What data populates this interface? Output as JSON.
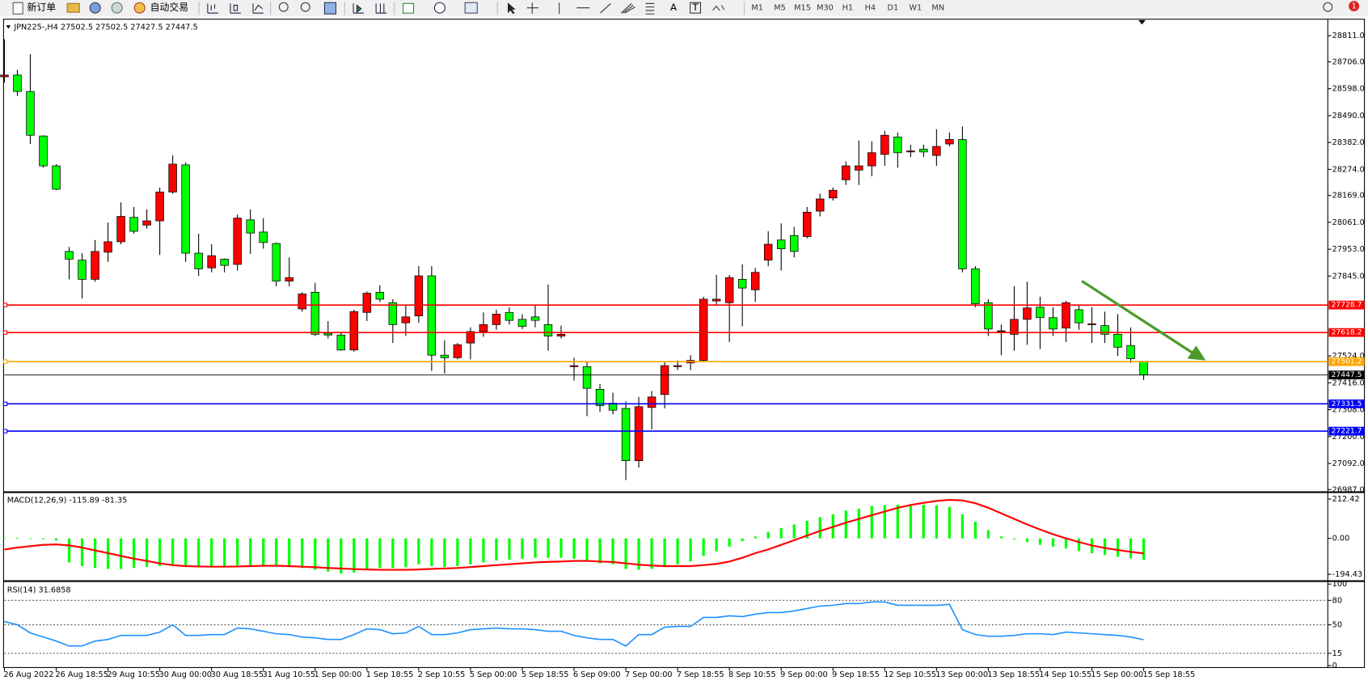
{
  "toolbar": {
    "new_order": "新订单",
    "auto_trade": "自动交易",
    "text_tool": "A",
    "label_tool": "T",
    "timeframes": [
      "M1",
      "M5",
      "M15",
      "M30",
      "H1",
      "H4",
      "D1",
      "W1",
      "MN"
    ],
    "badge": "1"
  },
  "chart_data": [
    {
      "type": "candlestick",
      "title": "JPN225-,H4  27502.5 27502.5 27427.5 27447.5",
      "categories": [
        "26 Aug 2022",
        null,
        null,
        null,
        "26 Aug 18:55",
        null,
        null,
        null,
        "29 Aug 10:55",
        null,
        null,
        null,
        "30 Aug 00:00",
        null,
        null,
        null,
        "30 Aug 18:55",
        null,
        null,
        null,
        "31 Aug 10:55",
        null,
        null,
        null,
        "1 Sep 00:00",
        null,
        null,
        null,
        "1 Sep 18:55",
        null,
        null,
        null,
        "2 Sep 10:55",
        null,
        null,
        null,
        "5 Sep 00:00",
        null,
        null,
        null,
        "5 Sep 18:55",
        null,
        null,
        null,
        "6 Sep 09:00",
        null,
        null,
        null,
        "7 Sep 00:00",
        null,
        null,
        null,
        "7 Sep 18:55",
        null,
        null,
        null,
        "8 Sep 10:55",
        null,
        null,
        null,
        "9 Sep 00:00",
        null,
        null,
        null,
        "9 Sep 18:55",
        null,
        null,
        null,
        "12 Sep 10:55",
        null,
        null,
        null,
        "13 Sep 00:00",
        null,
        null,
        null,
        "13 Sep 18:55",
        null,
        null,
        null,
        "14 Sep 10:55",
        null,
        null,
        null,
        "15 Sep 00:00",
        null,
        null,
        null,
        "15 Sep 18:55"
      ],
      "open": [
        28646,
        28653,
        28587,
        28408,
        28288,
        27944,
        27909,
        27832,
        27941,
        27983,
        28081,
        28050,
        28067,
        28183,
        28292,
        27937,
        27878,
        27913,
        27892,
        28071,
        28022,
        27976,
        27825,
        27713,
        27780,
        27615,
        27608,
        27548,
        27699,
        27780,
        27738,
        27657,
        27685,
        27846,
        27527,
        27517,
        27576,
        27622,
        27650,
        27699,
        27671,
        27681,
        27650,
        27604,
        27481,
        27481,
        27390,
        27334,
        27313,
        27103,
        27317,
        27369,
        27481,
        27496,
        27506,
        27745,
        27738,
        27832,
        27790,
        27909,
        27990,
        28008,
        28004,
        28106,
        28159,
        28232,
        28271,
        28288,
        28334,
        28404,
        28344,
        28355,
        28330,
        28376,
        28394,
        27874,
        27738,
        27622,
        27611,
        27671,
        27720,
        27678,
        27636,
        27710,
        27650,
        27646,
        27611,
        27566,
        27502.5
      ],
      "high": [
        28797,
        28674,
        28737,
        28411,
        28295,
        27962,
        27937,
        27990,
        28060,
        28141,
        28123,
        28113,
        28201,
        28330,
        28302,
        28015,
        27973,
        27916,
        28092,
        28113,
        28078,
        27980,
        27920,
        27780,
        27818,
        27664,
        27622,
        27710,
        27783,
        27808,
        27752,
        27727,
        27885,
        27885,
        27587,
        27576,
        27639,
        27699,
        27710,
        27720,
        27692,
        27727,
        27811,
        27646,
        27517,
        27499,
        27411,
        27376,
        27341,
        27359,
        27383,
        27499,
        27506,
        27527,
        27762,
        27850,
        27850,
        27892,
        27878,
        28025,
        28057,
        28043,
        28123,
        28176,
        28201,
        28306,
        28390,
        28387,
        28429,
        28422,
        28373,
        28373,
        28435,
        28422,
        28446,
        27885,
        27752,
        27650,
        27804,
        27822,
        27762,
        27720,
        27745,
        27727,
        27720,
        27702,
        27692,
        27639,
        27502.5
      ],
      "low": [
        28622,
        28569,
        28376,
        28281,
        28190,
        27832,
        27755,
        27822,
        27902,
        27973,
        28015,
        28036,
        27930,
        28176,
        27902,
        27846,
        27860,
        27860,
        27867,
        27934,
        27955,
        27804,
        27804,
        27702,
        27604,
        27594,
        27545,
        27541,
        27664,
        27741,
        27576,
        27604,
        27657,
        27464,
        27453,
        27510,
        27510,
        27601,
        27629,
        27650,
        27632,
        27639,
        27545,
        27594,
        27425,
        27282,
        27299,
        27289,
        27025,
        27075,
        27229,
        27313,
        27467,
        27467,
        27499,
        27727,
        27580,
        27643,
        27741,
        27885,
        27867,
        27920,
        27997,
        28085,
        28148,
        28211,
        28211,
        28246,
        28288,
        28281,
        28323,
        28323,
        28288,
        28366,
        27860,
        27720,
        27604,
        27527,
        27545,
        27569,
        27552,
        27604,
        27580,
        27629,
        27576,
        27576,
        27524,
        27496,
        27427.5
      ],
      "close": [
        28653,
        28587,
        28411,
        28288,
        28194,
        27913,
        27832,
        27944,
        27983,
        28085,
        28025,
        28067,
        28183,
        28295,
        27937,
        27874,
        27927,
        27888,
        28078,
        28018,
        27980,
        27825,
        27839,
        27773,
        27611,
        27608,
        27548,
        27702,
        27776,
        27752,
        27650,
        27681,
        27846,
        27527,
        27517,
        27569,
        27622,
        27650,
        27692,
        27667,
        27643,
        27667,
        27604,
        27611,
        27485,
        27394,
        27324,
        27306,
        27103,
        27320,
        27359,
        27485,
        27485,
        27506,
        27752,
        27752,
        27839,
        27797,
        27860,
        27973,
        27955,
        27944,
        28102,
        28155,
        28190,
        28288,
        28288,
        28341,
        28411,
        28341,
        28348,
        28344,
        28366,
        28394,
        27874,
        27734,
        27632,
        27625,
        27671,
        27717,
        27678,
        27632,
        27738,
        27657,
        27653,
        27611,
        27559,
        27513,
        27447.5
      ],
      "up_color": "#ff0000",
      "down_color": "#00ff00",
      "ylim": [
        26980,
        28874
      ],
      "yticks": [
        {
          "value": 28811,
          "label": "28811.0"
        },
        {
          "value": 28706,
          "label": "28706.0"
        },
        {
          "value": 28598,
          "label": "28598.0"
        },
        {
          "value": 28490,
          "label": "28490.0"
        },
        {
          "value": 28382,
          "label": "28382.0"
        },
        {
          "value": 28274,
          "label": "28274.0"
        },
        {
          "value": 28169,
          "label": "28169.0"
        },
        {
          "value": 28061,
          "label": "28061.0"
        },
        {
          "value": 27953,
          "label": "27953.0"
        },
        {
          "value": 27845,
          "label": "27845.0"
        },
        {
          "value": 27524,
          "label": "27524.0"
        },
        {
          "value": 27416,
          "label": "27416.0"
        },
        {
          "value": 27308,
          "label": "27308.0"
        },
        {
          "value": 27200,
          "label": "27200.0"
        },
        {
          "value": 27092,
          "label": "27092.0"
        },
        {
          "value": 26987,
          "label": "26987.0"
        }
      ],
      "price_lines": [
        {
          "value": 27728.7,
          "color": "#ff0000"
        },
        {
          "value": 27618.2,
          "color": "#ff0000"
        },
        {
          "value": 27501.2,
          "color": "#ffa500"
        },
        {
          "value": 27331.5,
          "color": "#0000ff"
        },
        {
          "value": 27221.7,
          "color": "#0000ff"
        }
      ]
    },
    {
      "type": "macd",
      "title": "MACD(12,26,9) -115.89 -81.35",
      "histogram": [
        5,
        3,
        -2,
        -5,
        -12,
        -130,
        -150,
        -160,
        -165,
        -165,
        -160,
        -155,
        -150,
        -140,
        -145,
        -150,
        -150,
        -150,
        -145,
        -145,
        -145,
        -150,
        -155,
        -160,
        -170,
        -180,
        -190,
        -185,
        -170,
        -160,
        -160,
        -155,
        -140,
        -150,
        -155,
        -150,
        -140,
        -130,
        -120,
        -115,
        -110,
        -105,
        -105,
        -105,
        -110,
        -125,
        -135,
        -140,
        -165,
        -170,
        -165,
        -150,
        -140,
        -125,
        -95,
        -70,
        -45,
        -15,
        10,
        35,
        55,
        75,
        95,
        115,
        130,
        150,
        160,
        175,
        180,
        182,
        185,
        182,
        178,
        170,
        130,
        90,
        45,
        10,
        -5,
        -20,
        -35,
        -45,
        -55,
        -68,
        -80,
        -90,
        -100,
        -108,
        -115.89
      ],
      "signal": [
        -60,
        -50,
        -42,
        -35,
        -33,
        -38,
        -50,
        -65,
        -80,
        -95,
        -110,
        -122,
        -135,
        -145,
        -150,
        -152,
        -153,
        -153,
        -152,
        -150,
        -148,
        -148,
        -150,
        -153,
        -156,
        -160,
        -163,
        -166,
        -168,
        -170,
        -170,
        -170,
        -168,
        -165,
        -163,
        -160,
        -155,
        -150,
        -145,
        -140,
        -135,
        -130,
        -127,
        -125,
        -122,
        -122,
        -125,
        -128,
        -135,
        -142,
        -147,
        -150,
        -150,
        -150,
        -145,
        -138,
        -125,
        -105,
        -80,
        -60,
        -35,
        -10,
        15,
        40,
        62,
        85,
        105,
        125,
        145,
        165,
        180,
        192,
        202,
        208,
        205,
        190,
        165,
        135,
        105,
        75,
        48,
        22,
        0,
        -20,
        -38,
        -52,
        -63,
        -73,
        -81.35
      ],
      "histogram_color": "#00ff00",
      "signal_color": "#ff0000",
      "ylim": [
        -226.6,
        245
      ],
      "yticks": [
        {
          "value": 212.42,
          "label": "212.42"
        },
        {
          "value": 0,
          "label": "0.00"
        },
        {
          "value": -194.43,
          "label": "-194.43"
        }
      ]
    },
    {
      "type": "rsi",
      "title": "RSI(14) 31.6858",
      "values": [
        54,
        50,
        40,
        35,
        30,
        24,
        24,
        30,
        32,
        37,
        37,
        37,
        41,
        50,
        37,
        37,
        38,
        38,
        46,
        45,
        42,
        39,
        38,
        35,
        34,
        32,
        32,
        38,
        45,
        44,
        39,
        40,
        48,
        38,
        38,
        40,
        44,
        45,
        46,
        45,
        45,
        44,
        42,
        42,
        37,
        34,
        32,
        32,
        24,
        38,
        38,
        47,
        48,
        48,
        59,
        59,
        61,
        60,
        63,
        65,
        65,
        67,
        70,
        73,
        74,
        76,
        76,
        78,
        78,
        74,
        74,
        74,
        74,
        75,
        44,
        38,
        36,
        36,
        37,
        39,
        39,
        38,
        41,
        40,
        39,
        38,
        37,
        35,
        31.6858
      ],
      "color": "#1e90ff",
      "ylim": [
        -2.5,
        102.5
      ],
      "yticks": [
        100,
        80,
        50,
        15,
        0
      ],
      "levels": [
        80,
        50,
        15
      ]
    }
  ]
}
